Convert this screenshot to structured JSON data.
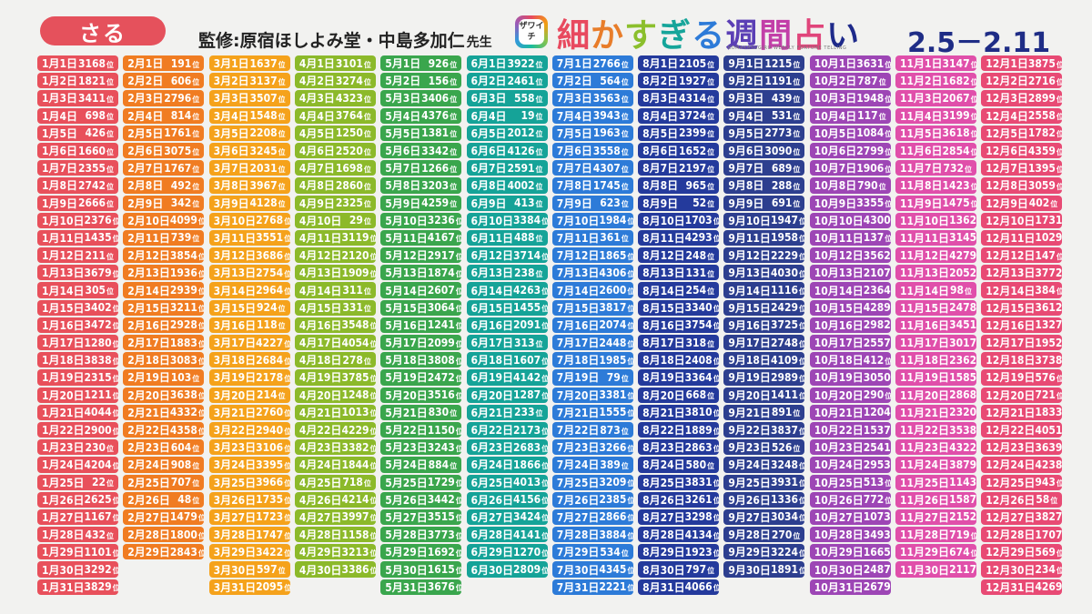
{
  "header": {
    "sign": "さる",
    "supervisor": "監修:原宿ほしよみ堂・中島多加仁",
    "supervisor_honorific": "先生",
    "logo_mark_text": "ザワイチ",
    "logo_title_chars": [
      "細",
      "か",
      "す",
      "ぎ",
      "る",
      "週",
      "間",
      "占",
      "い"
    ],
    "logo_subtitle": "KOMAKASUGIRU WEEKLY FORTUNE TELLING",
    "date_range": "2.5－2.11"
  },
  "rank_suffix": "位",
  "colors": {
    "badge": "#e5515c",
    "months": [
      "#e8505b",
      "#f07c22",
      "#f5a21b",
      "#8cb92a",
      "#3aa64d",
      "#15a398",
      "#2d7bd8",
      "#243a9c",
      "#2d3f8f",
      "#9d46b5",
      "#e04faa",
      "#e84a74"
    ]
  },
  "months": [
    {
      "label": "1月",
      "ranks": [
        3168,
        1821,
        3411,
        698,
        426,
        1660,
        2355,
        2742,
        2666,
        2376,
        1435,
        211,
        3679,
        305,
        3402,
        3472,
        1280,
        3838,
        2315,
        1211,
        4044,
        2900,
        230,
        4204,
        22,
        2625,
        1167,
        432,
        1101,
        3292,
        3829
      ]
    },
    {
      "label": "2月",
      "ranks": [
        191,
        606,
        2796,
        814,
        1761,
        3075,
        1767,
        492,
        342,
        4099,
        739,
        3854,
        1936,
        2939,
        3211,
        2928,
        1883,
        3083,
        103,
        3638,
        4332,
        4358,
        604,
        908,
        707,
        48,
        1479,
        1800,
        2843
      ]
    },
    {
      "label": "3月",
      "ranks": [
        1637,
        3137,
        3507,
        1548,
        2208,
        3245,
        2031,
        3967,
        4128,
        2768,
        3551,
        3686,
        2754,
        2964,
        924,
        118,
        4227,
        2684,
        2178,
        214,
        2760,
        2940,
        3106,
        3395,
        3966,
        1735,
        1723,
        1747,
        3422,
        597,
        2095
      ]
    },
    {
      "label": "4月",
      "ranks": [
        3101,
        3274,
        4323,
        3764,
        1250,
        2520,
        1698,
        2860,
        2325,
        29,
        3119,
        2120,
        1909,
        311,
        331,
        3548,
        4054,
        278,
        3785,
        1248,
        1013,
        4229,
        3382,
        1844,
        718,
        4214,
        3997,
        1158,
        3213,
        3386
      ]
    },
    {
      "label": "5月",
      "ranks": [
        926,
        156,
        3406,
        4376,
        1381,
        3342,
        1266,
        3203,
        4259,
        3236,
        4167,
        2917,
        1874,
        2607,
        3064,
        1241,
        2099,
        3808,
        2472,
        3516,
        830,
        1150,
        3243,
        884,
        1729,
        3442,
        3515,
        3773,
        1692,
        1615,
        3676
      ]
    },
    {
      "label": "6月",
      "ranks": [
        3922,
        2461,
        558,
        19,
        2012,
        4126,
        2591,
        4002,
        413,
        3384,
        488,
        3714,
        238,
        4263,
        1455,
        2091,
        313,
        1607,
        4142,
        1287,
        233,
        2173,
        2683,
        1866,
        4013,
        4156,
        3424,
        4141,
        1270,
        2809
      ]
    },
    {
      "label": "7月",
      "ranks": [
        2766,
        564,
        3563,
        3943,
        1963,
        3558,
        4307,
        1745,
        623,
        1984,
        361,
        1865,
        4306,
        2600,
        3817,
        2074,
        2448,
        1985,
        79,
        3381,
        1555,
        873,
        3266,
        389,
        3209,
        2385,
        2866,
        3884,
        534,
        4345,
        2221
      ]
    },
    {
      "label": "8月",
      "ranks": [
        2105,
        1927,
        4314,
        3724,
        2399,
        1652,
        2197,
        965,
        52,
        1703,
        4293,
        248,
        131,
        254,
        3340,
        3754,
        318,
        2408,
        3364,
        668,
        3810,
        1889,
        2863,
        580,
        3831,
        3261,
        3298,
        4134,
        1923,
        797,
        4066
      ]
    },
    {
      "label": "9月",
      "ranks": [
        1215,
        1191,
        439,
        531,
        2773,
        3090,
        689,
        288,
        691,
        1947,
        1958,
        2229,
        4030,
        1116,
        2429,
        3725,
        2748,
        4109,
        2989,
        1411,
        891,
        3837,
        526,
        3248,
        3931,
        1336,
        3034,
        270,
        3224,
        1891
      ]
    },
    {
      "label": "10月",
      "ranks": [
        3631,
        787,
        1948,
        117,
        1084,
        2799,
        1906,
        790,
        3355,
        4300,
        137,
        3562,
        2107,
        2364,
        4289,
        2982,
        2557,
        412,
        3050,
        290,
        1204,
        1537,
        2541,
        2953,
        513,
        772,
        1073,
        3493,
        1665,
        2487,
        2679
      ]
    },
    {
      "label": "11月",
      "ranks": [
        3147,
        1682,
        2067,
        3199,
        3618,
        2854,
        732,
        1423,
        1475,
        1362,
        3145,
        4279,
        2052,
        98,
        2478,
        3451,
        3017,
        2362,
        1585,
        2868,
        2320,
        3538,
        4322,
        3879,
        1143,
        1587,
        2152,
        719,
        674,
        2117
      ]
    },
    {
      "label": "12月",
      "ranks": [
        3875,
        2716,
        2899,
        2558,
        1782,
        4359,
        1395,
        3059,
        402,
        1731,
        1029,
        147,
        3772,
        384,
        3612,
        1327,
        1952,
        3738,
        576,
        721,
        1833,
        4051,
        3639,
        4238,
        943,
        58,
        3827,
        1707,
        569,
        234,
        4269
      ]
    }
  ]
}
